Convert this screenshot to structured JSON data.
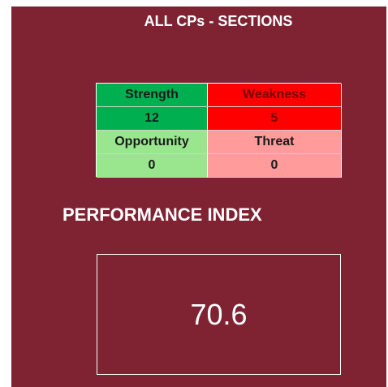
{
  "header": {
    "title": "ALL CPs - SECTIONS"
  },
  "swot": {
    "strength": {
      "label": "Strength",
      "value": 12
    },
    "weakness": {
      "label": "Weakness",
      "value": 5
    },
    "opportunity": {
      "label": "Opportunity",
      "value": 0
    },
    "threat": {
      "label": "Threat",
      "value": 0
    }
  },
  "performance": {
    "label": "PERFORMANCE INDEX",
    "value": 70.6
  }
}
